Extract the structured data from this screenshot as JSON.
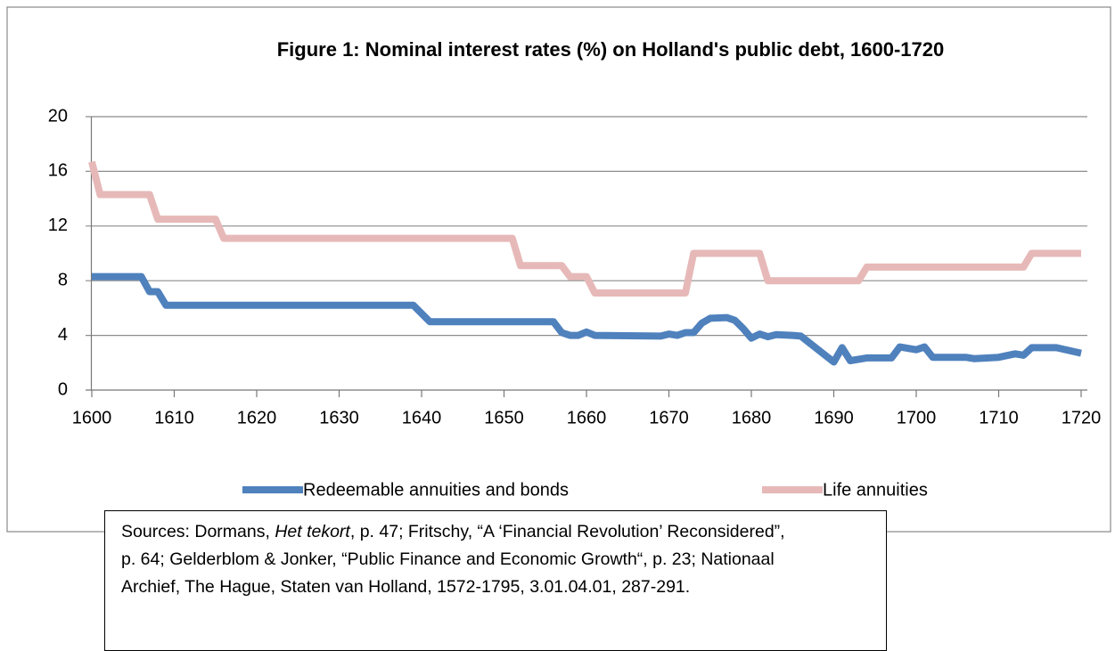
{
  "chart_data": {
    "type": "line",
    "title": "Figure 1: Nominal interest rates (%) on Holland's public debt, 1600-1720",
    "xlim": [
      1600,
      1720
    ],
    "xticks": [
      1600,
      1610,
      1620,
      1630,
      1640,
      1650,
      1660,
      1670,
      1680,
      1690,
      1700,
      1710,
      1720
    ],
    "ylim": [
      0,
      20
    ],
    "yticks": [
      0,
      4,
      8,
      12,
      16,
      20
    ],
    "grid": true,
    "legend": "bottom",
    "series": [
      {
        "name": "Redeemable annuities and bonds",
        "color": "#4f81bd",
        "x": [
          1600,
          1606,
          1607,
          1608,
          1609,
          1639,
          1641,
          1656,
          1657,
          1658,
          1659,
          1660,
          1661,
          1669,
          1670,
          1671,
          1672,
          1673,
          1674,
          1675,
          1677,
          1678,
          1679,
          1680,
          1681,
          1682,
          1683,
          1685,
          1686,
          1690,
          1691,
          1692,
          1694,
          1697,
          1698,
          1700,
          1701,
          1702,
          1706,
          1707,
          1710,
          1712,
          1713,
          1714,
          1717,
          1720
        ],
        "values": [
          8.3,
          8.3,
          7.2,
          7.2,
          6.2,
          6.2,
          5.0,
          5.0,
          4.2,
          4.0,
          4.0,
          4.25,
          4.0,
          3.95,
          4.1,
          4.0,
          4.2,
          4.2,
          4.9,
          5.25,
          5.3,
          5.1,
          4.5,
          3.8,
          4.1,
          3.9,
          4.05,
          4.0,
          3.95,
          2.05,
          3.1,
          2.15,
          2.35,
          2.35,
          3.15,
          2.95,
          3.15,
          2.4,
          2.4,
          2.3,
          2.4,
          2.65,
          2.55,
          3.1,
          3.1,
          2.7
        ]
      },
      {
        "name": "Life annuities",
        "color": "#e6b9b8",
        "x": [
          1600,
          1601,
          1607,
          1608,
          1615,
          1616,
          1651,
          1652,
          1657,
          1658,
          1660,
          1661,
          1672,
          1673,
          1681,
          1682,
          1693,
          1694,
          1713,
          1714,
          1720
        ],
        "values": [
          16.7,
          14.3,
          14.3,
          12.5,
          12.5,
          11.1,
          11.1,
          9.1,
          9.1,
          8.3,
          8.3,
          7.1,
          7.1,
          10,
          10,
          8,
          8,
          9,
          9,
          10,
          10
        ]
      }
    ],
    "sources": [
      "Sources: Dormans, ",
      "Het tekort",
      ", p. 47; Fritschy, “A ‘Financial Revolution’ Reconsidered”,",
      "p. 64; Gelderblom & Jonker, “Public Finance and Economic Growth“, p. 23; Nationaal",
      "Archief, The Hague, Staten van Holland, 1572-1795, 3.01.04.01, 287-291."
    ]
  }
}
